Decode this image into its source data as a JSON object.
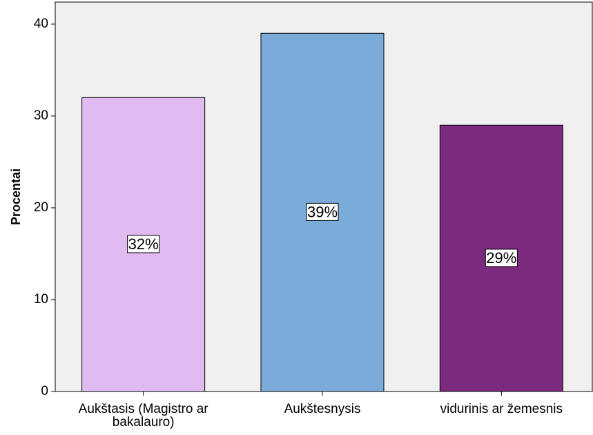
{
  "chart_data": {
    "type": "bar",
    "y_label": "Procentai",
    "categories": [
      "Aukštasis (Magistro ar bakalauro)",
      "Aukštesnysis",
      "vidurinis ar žemesnis"
    ],
    "values": [
      32,
      39,
      29
    ],
    "value_labels": [
      "32%",
      "39%",
      "29%"
    ],
    "colors": [
      "#dfbbf2",
      "#7bacd9",
      "#7b2a7e"
    ],
    "ylim": [
      0,
      42.4
    ],
    "yticks": [
      0,
      10,
      20,
      30,
      40
    ],
    "grid": false
  }
}
